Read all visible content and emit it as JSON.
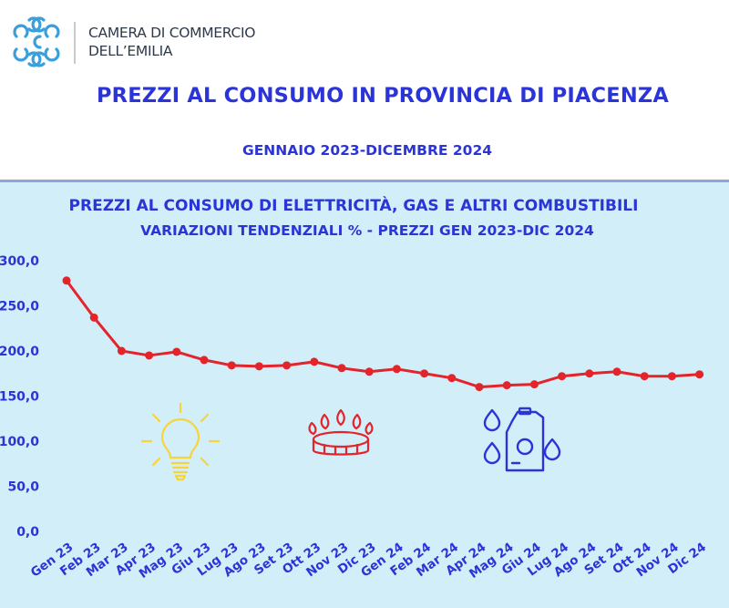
{
  "header": {
    "org_line1": "CAMERA DI COMMERCIO",
    "org_line2": "DELL’EMILIA",
    "main_title": "PREZZI AL CONSUMO IN PROVINCIA DI PIACENZA",
    "period": "GENNAIO 2023-DICEMBRE 2024"
  },
  "colors": {
    "title_blue": "#2b34d6",
    "panel_bg": "#d2eef9",
    "series_red": "#e3242b",
    "logo_blue": "#3aa0dc"
  },
  "icons": [
    "logo-mark-icon",
    "lightbulb-icon",
    "gas-burner-icon",
    "fuel-canister-icon"
  ],
  "chart_data": {
    "type": "line",
    "title": "PREZZI AL CONSUMO DI ELETTRICITÀ, GAS  E ALTRI COMBUSTIBILI",
    "subtitle": "VARIAZIONI  TENDENZIALI %  - PREZZI GEN 2023-DIC 2024",
    "categories": [
      "Gen 23",
      "Feb 23",
      "Mar 23",
      "Apr 23",
      "Mag 23",
      "Giu 23",
      "Lug 23",
      "Ago 23",
      "Set 23",
      "Ott 23",
      "Nov 23",
      "Dic 23",
      "Gen 24",
      "Feb 24",
      "Mar 24",
      "Apr 24",
      "Mag 24",
      "Giu 24",
      "Lug 24",
      "Ago 24",
      "Set 24",
      "Ott 24",
      "Nov 24",
      "Dic 24"
    ],
    "values": [
      278,
      237,
      200,
      195,
      199,
      190,
      184,
      183,
      184,
      188,
      181,
      177,
      180,
      175,
      170,
      160,
      162,
      163,
      172,
      175,
      177,
      172,
      172,
      174
    ],
    "y_tick_labels": [
      "0,0",
      "50,0",
      "100,0",
      "150,0",
      "200,0",
      "250,0",
      "300,0"
    ],
    "ylim": [
      0,
      300
    ],
    "grid": false,
    "legend": "none"
  }
}
